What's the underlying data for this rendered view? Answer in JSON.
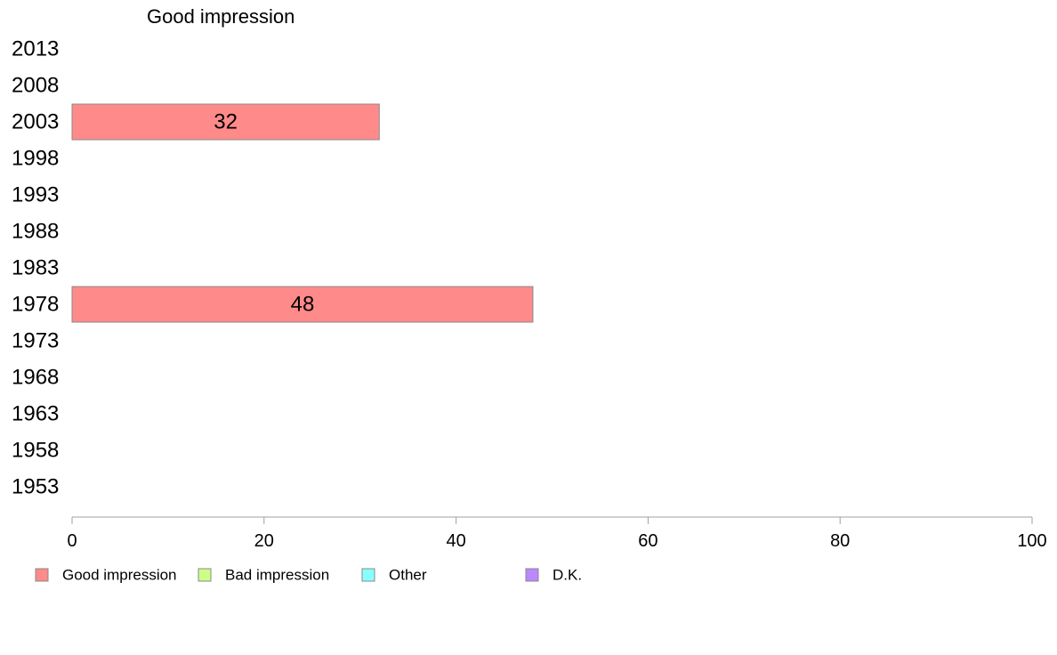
{
  "chart_data": {
    "type": "bar",
    "orientation": "horizontal",
    "title": "Good impression",
    "categories": [
      "2013",
      "2008",
      "2003",
      "1998",
      "1993",
      "1988",
      "1983",
      "1978",
      "1973",
      "1968",
      "1963",
      "1958",
      "1953"
    ],
    "series": [
      {
        "name": "Good impression",
        "color": "#ff8a8a",
        "values": [
          null,
          null,
          32,
          null,
          null,
          null,
          null,
          48,
          null,
          null,
          null,
          null,
          null
        ]
      }
    ],
    "xlim": [
      0,
      100
    ],
    "xticks": [
      0,
      20,
      40,
      60,
      80,
      100
    ],
    "grid": false,
    "legend": {
      "placement": "bottom-left",
      "entries": [
        {
          "label": "Good impression",
          "color": "#ff8a8a"
        },
        {
          "label": "Bad impression",
          "color": "#ccff88"
        },
        {
          "label": "Other",
          "color": "#88ffff"
        },
        {
          "label": "D.K.",
          "color": "#bb88ff"
        }
      ]
    }
  }
}
